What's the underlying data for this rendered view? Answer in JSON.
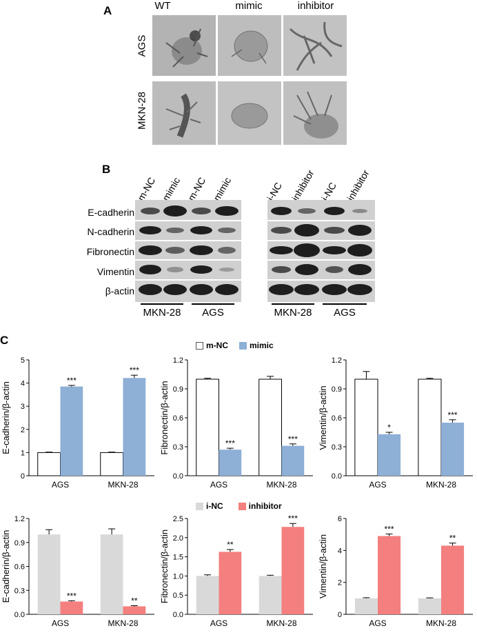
{
  "panel_a": {
    "letter": "A",
    "columns": [
      "WT",
      "mimic",
      "inhibitor"
    ],
    "rows": [
      "AGS",
      "MKN-28"
    ]
  },
  "panel_b": {
    "letter": "B",
    "left_lanes": [
      "m-NC",
      "mimic",
      "m-NC",
      "mimic"
    ],
    "right_lanes": [
      "i-NC",
      "inhibitor",
      "i-NC",
      "inhibitor"
    ],
    "proteins": [
      "E-cadherin",
      "N-cadherin",
      "Fibronectin",
      "Vimentin",
      "β-actin"
    ],
    "left_groups": [
      "MKN-28",
      "AGS"
    ],
    "right_groups": [
      "MKN-28",
      "AGS"
    ]
  },
  "panel_c": {
    "letter": "C",
    "legend_top": {
      "control": "m-NC",
      "treatment": "mimic"
    },
    "legend_bottom": {
      "control": "i-NC",
      "treatment": "inhibitor"
    }
  },
  "colors": {
    "mimic": "#8eafd6",
    "inhibitor": "#f47f7f",
    "i_nc": "#d9d9d9",
    "m_nc": "#ffffff"
  },
  "chart_data": [
    {
      "type": "bar",
      "categories": [
        "AGS",
        "MKN-28"
      ],
      "ylabel": "E-cadherin/β-actin",
      "ylim": [
        0,
        5
      ],
      "yticks": [
        0,
        1,
        2,
        3,
        4,
        5
      ],
      "series": [
        {
          "name": "m-NC",
          "values": [
            1.0,
            1.0
          ],
          "errors": [
            0.02,
            0.02
          ]
        },
        {
          "name": "mimic",
          "values": [
            3.85,
            4.22
          ],
          "errors": [
            0.05,
            0.12
          ]
        }
      ],
      "significance": [
        "***",
        "***"
      ]
    },
    {
      "type": "bar",
      "categories": [
        "AGS",
        "MKN-28"
      ],
      "ylabel": "Fibronectin/β-actin",
      "ylim": [
        0,
        1.2
      ],
      "yticks": [
        0.0,
        0.3,
        0.6,
        0.9,
        1.2
      ],
      "series": [
        {
          "name": "m-NC",
          "values": [
            1.0,
            1.0
          ],
          "errors": [
            0.01,
            0.03
          ]
        },
        {
          "name": "mimic",
          "values": [
            0.27,
            0.31
          ],
          "errors": [
            0.015,
            0.02
          ]
        }
      ],
      "significance": [
        "***",
        "***"
      ]
    },
    {
      "type": "bar",
      "categories": [
        "AGS",
        "MKN-28"
      ],
      "ylabel": "Vimentin/β-actin",
      "ylim": [
        0,
        1.2
      ],
      "yticks": [
        0.0,
        0.3,
        0.6,
        0.9,
        1.2
      ],
      "series": [
        {
          "name": "m-NC",
          "values": [
            1.0,
            1.0
          ],
          "errors": [
            0.08,
            0.01
          ]
        },
        {
          "name": "mimic",
          "values": [
            0.43,
            0.55
          ],
          "errors": [
            0.02,
            0.03
          ]
        }
      ],
      "significance": [
        "*",
        "***"
      ]
    },
    {
      "type": "bar",
      "categories": [
        "AGS",
        "MKN-28"
      ],
      "ylabel": "E-cadherin/β-actin",
      "ylim": [
        0,
        1.2
      ],
      "yticks": [
        0.0,
        0.3,
        0.6,
        0.9,
        1.2
      ],
      "series": [
        {
          "name": "i-NC",
          "values": [
            1.0,
            1.0
          ],
          "errors": [
            0.06,
            0.07
          ]
        },
        {
          "name": "inhibitor",
          "values": [
            0.16,
            0.1
          ],
          "errors": [
            0.01,
            0.008
          ]
        }
      ],
      "significance": [
        "***",
        "**"
      ]
    },
    {
      "type": "bar",
      "categories": [
        "AGS",
        "MKN-28"
      ],
      "ylabel": "Fibronectin/β-actin",
      "ylim": [
        0,
        2.5
      ],
      "yticks": [
        0.0,
        0.5,
        1.0,
        1.5,
        2.0,
        2.5
      ],
      "series": [
        {
          "name": "i-NC",
          "values": [
            1.0,
            1.0
          ],
          "errors": [
            0.03,
            0.02
          ]
        },
        {
          "name": "inhibitor",
          "values": [
            1.63,
            2.28
          ],
          "errors": [
            0.06,
            0.09
          ]
        }
      ],
      "significance": [
        "**",
        "***"
      ]
    },
    {
      "type": "bar",
      "categories": [
        "AGS",
        "MKN-28"
      ],
      "ylabel": "Vimentin/β-actin",
      "ylim": [
        0,
        6
      ],
      "yticks": [
        0,
        2,
        4,
        6
      ],
      "series": [
        {
          "name": "i-NC",
          "values": [
            1.0,
            1.0
          ],
          "errors": [
            0.04,
            0.03
          ]
        },
        {
          "name": "inhibitor",
          "values": [
            4.9,
            4.3
          ],
          "errors": [
            0.13,
            0.16
          ]
        }
      ],
      "significance": [
        "***",
        "**"
      ]
    }
  ]
}
